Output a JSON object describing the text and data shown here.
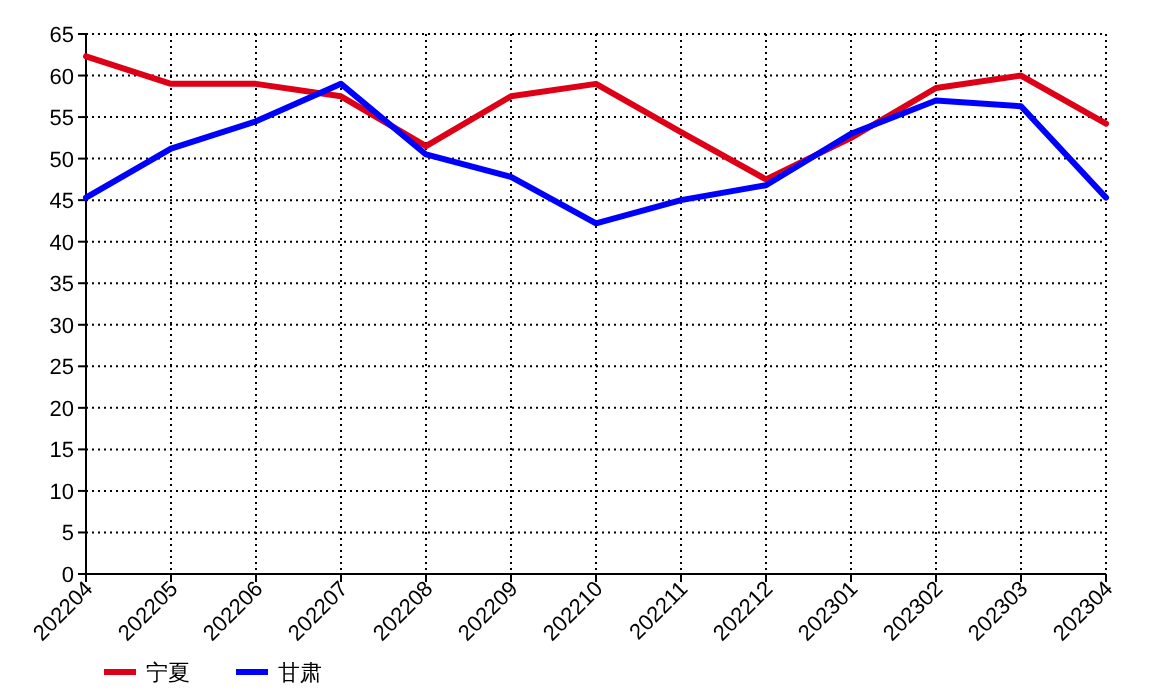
{
  "chart_data": {
    "type": "line",
    "categories": [
      "202204",
      "202205",
      "202206",
      "202207",
      "202208",
      "202209",
      "202210",
      "202211",
      "202212",
      "202301",
      "202302",
      "202303",
      "202304"
    ],
    "series": [
      {
        "name": "宁夏",
        "color": "#dd0016",
        "values": [
          62.3,
          59,
          59,
          57.5,
          51.5,
          57.5,
          59,
          53.2,
          47.5,
          52.5,
          58.5,
          60,
          54.2
        ]
      },
      {
        "name": "甘肃",
        "color": "#0000ff",
        "values": [
          45.3,
          51.2,
          54.5,
          59,
          50.5,
          47.8,
          42.2,
          45,
          46.8,
          53,
          57,
          56.3,
          45.3
        ]
      }
    ],
    "ylim": [
      0,
      65
    ],
    "yticks": [
      0,
      5,
      10,
      15,
      20,
      25,
      30,
      35,
      40,
      45,
      50,
      55,
      60,
      65
    ],
    "grid": true,
    "legend": "bottom left",
    "marker": "none",
    "line_style": "solid"
  }
}
